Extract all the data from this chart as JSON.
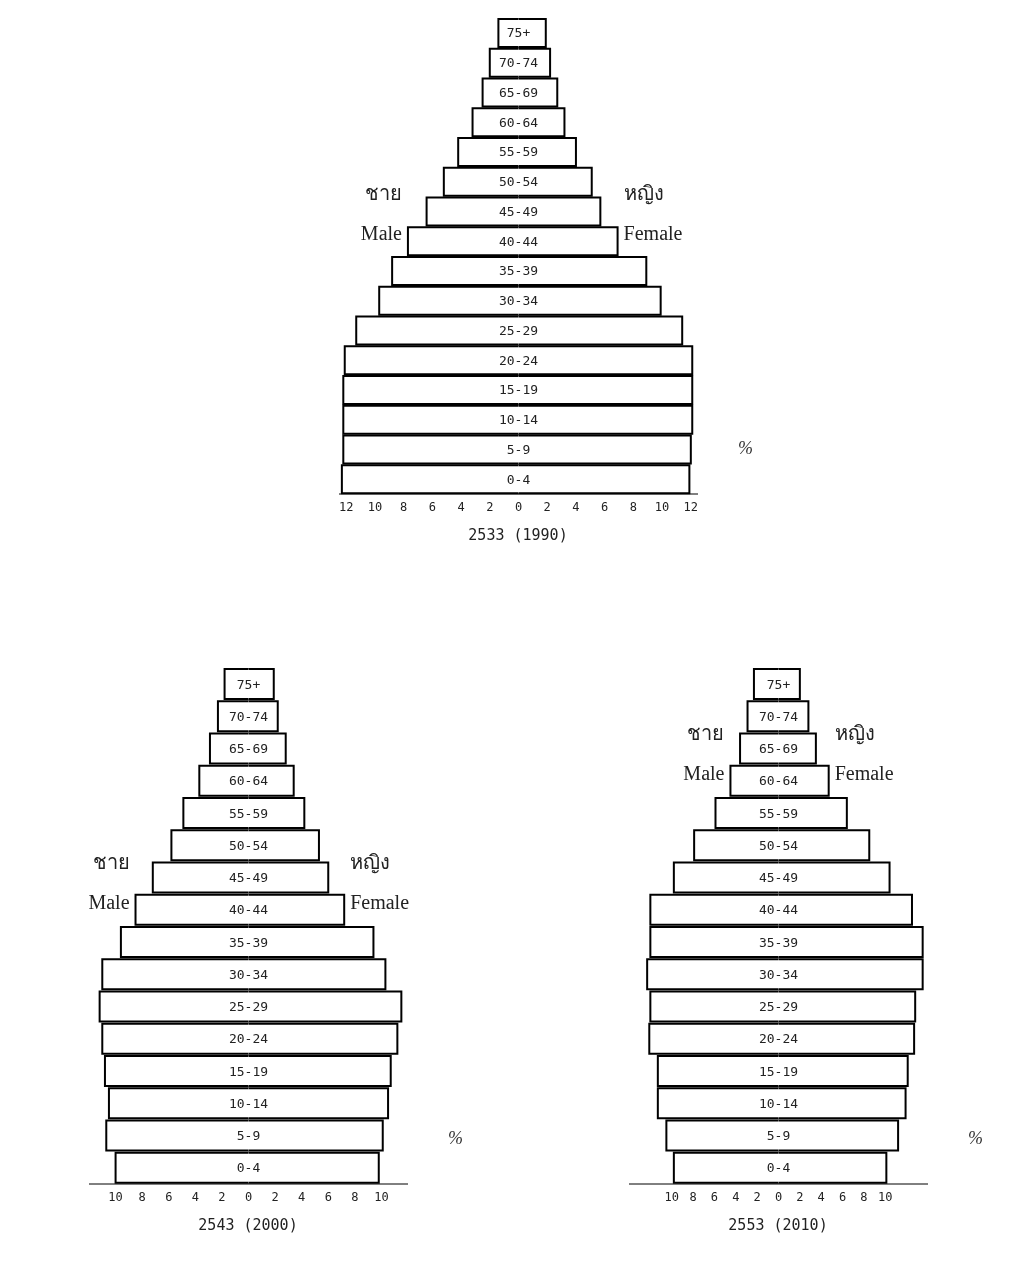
{
  "chart_data": [
    {
      "type": "bar",
      "orientation": "horizontal",
      "stacked": true,
      "title": "2533 (1990)",
      "xlabel": "%",
      "annotations": [
        "ชาย",
        "หญิง"
      ],
      "categories": [
        "75+",
        "70-74",
        "65-69",
        "60-64",
        "55-59",
        "50-54",
        "45-49",
        "40-44",
        "35-39",
        "30-34",
        "25-29",
        "20-24",
        "15-19",
        "10-14",
        "5-9",
        "0-4"
      ],
      "series": [
        {
          "name": "Male",
          "color": "#ffffff",
          "values": [
            -1.4,
            -2.0,
            -2.5,
            -3.2,
            -4.2,
            -5.2,
            -6.4,
            -7.7,
            -8.8,
            -9.7,
            -11.3,
            -12.1,
            -12.2,
            -12.2,
            -12.2,
            -12.3
          ]
        },
        {
          "name": "Female",
          "color": "#ffffff",
          "values": [
            1.9,
            2.2,
            2.7,
            3.2,
            4.0,
            5.1,
            5.7,
            6.9,
            8.9,
            9.9,
            11.4,
            12.1,
            12.1,
            12.1,
            12.0,
            11.9
          ]
        }
      ],
      "xlim": [
        -12.5,
        12.5
      ],
      "xticks": [
        {
          "value": -12,
          "label": "12"
        },
        {
          "value": -10,
          "label": "10"
        },
        {
          "value": -8,
          "label": "8"
        },
        {
          "value": -6,
          "label": "6"
        },
        {
          "value": -4,
          "label": "4"
        },
        {
          "value": -2,
          "label": "2"
        },
        0,
        2,
        4,
        6,
        8,
        10,
        12
      ]
    },
    {
      "type": "bar",
      "orientation": "horizontal",
      "stacked": true,
      "title": "2543 (2000)",
      "xlabel": "%",
      "annotations": [
        "ชาย",
        "หญิง"
      ],
      "categories": [
        "75+",
        "70-74",
        "65-69",
        "60-64",
        "55-59",
        "50-54",
        "45-49",
        "40-44",
        "35-39",
        "30-34",
        "25-29",
        "20-24",
        "15-19",
        "10-14",
        "5-9",
        "0-4"
      ],
      "series": [
        {
          "name": "Male",
          "color": "#ffffff",
          "values": [
            -1.8,
            -2.3,
            -2.9,
            -3.7,
            -4.9,
            -5.8,
            -7.2,
            -8.5,
            -9.6,
            -11.0,
            -11.2,
            -11.0,
            -10.8,
            -10.5,
            -10.7,
            -10.0
          ]
        },
        {
          "name": "Female",
          "color": "#ffffff",
          "values": [
            1.9,
            2.2,
            2.8,
            3.4,
            4.2,
            5.3,
            6.0,
            7.2,
            9.4,
            10.3,
            11.5,
            11.2,
            10.7,
            10.5,
            10.1,
            9.8
          ]
        }
      ],
      "xlim": [
        -12,
        12
      ],
      "xticks": [
        {
          "value": -10,
          "label": "10"
        },
        {
          "value": -8,
          "label": "8"
        },
        {
          "value": -6,
          "label": "6"
        },
        {
          "value": -4,
          "label": "4"
        },
        {
          "value": -2,
          "label": "2"
        },
        0,
        2,
        4,
        6,
        8,
        10
      ]
    },
    {
      "type": "bar",
      "orientation": "horizontal",
      "stacked": true,
      "title": "2553 (2010)",
      "xlabel": "%",
      "annotations": [
        "ชาย",
        "หญิง"
      ],
      "categories": [
        "75+",
        "70-74",
        "65-69",
        "60-64",
        "55-59",
        "50-54",
        "45-49",
        "40-44",
        "35-39",
        "30-34",
        "25-29",
        "20-24",
        "15-19",
        "10-14",
        "5-9",
        "0-4"
      ],
      "series": [
        {
          "name": "Male",
          "color": "#ffffff",
          "values": [
            -2.3,
            -2.9,
            -3.6,
            -4.5,
            -5.9,
            -7.9,
            -9.8,
            -12.0,
            -12.0,
            -12.3,
            -12.0,
            -12.1,
            -11.3,
            -11.3,
            -10.5,
            -9.8
          ]
        },
        {
          "name": "Female",
          "color": "#ffffff",
          "values": [
            2.0,
            2.8,
            3.5,
            4.7,
            6.4,
            8.5,
            10.4,
            12.5,
            13.5,
            13.5,
            12.8,
            12.7,
            12.1,
            11.9,
            11.2,
            10.1
          ]
        }
      ],
      "xlim": [
        -14,
        14
      ],
      "xticks": [
        {
          "value": -10,
          "label": "10"
        },
        {
          "value": -8,
          "label": "8"
        },
        {
          "value": -6,
          "label": "6"
        },
        {
          "value": -4,
          "label": "4"
        },
        {
          "value": -2,
          "label": "2"
        },
        0,
        2,
        4,
        6,
        8,
        10
      ]
    }
  ]
}
